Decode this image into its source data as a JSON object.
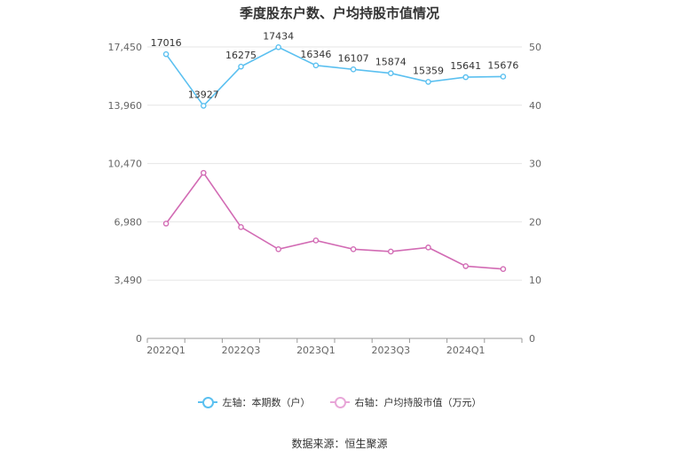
{
  "chart_data": {
    "type": "line",
    "title": "季度股东户数、户均持股市值情况",
    "source": "数据来源：恒生聚源",
    "x": [
      "2022Q1",
      "2022Q2",
      "2022Q3",
      "2022Q4",
      "2023Q1",
      "2023Q2",
      "2023Q3",
      "2023Q4",
      "2024Q1",
      "2024Q2"
    ],
    "x_tick_labels": [
      "2022Q1",
      "",
      "2022Q3",
      "",
      "2023Q1",
      "",
      "2023Q3",
      "",
      "2024Q1",
      ""
    ],
    "left_axis": {
      "ylim": [
        0,
        17450
      ],
      "ticks": [
        "0",
        "3,490",
        "6,980",
        "10,470",
        "13,960",
        "17,450"
      ]
    },
    "right_axis": {
      "ylim": [
        0,
        50
      ],
      "ticks": [
        "0",
        "10",
        "20",
        "30",
        "40",
        "50"
      ]
    },
    "grid": true,
    "legend_position": "bottom",
    "series": [
      {
        "name": "左轴：本期数（户）",
        "axis": "left",
        "color": "#5bc0f0",
        "values": [
          17016,
          13927,
          16275,
          17434,
          16346,
          16107,
          15874,
          15359,
          15641,
          15676
        ],
        "labels": [
          "17016",
          "13927",
          "16275",
          "17434",
          "16346",
          "16107",
          "15874",
          "15359",
          "15641",
          "15676"
        ]
      },
      {
        "name": "右轴：户均持股市值（万元）",
        "axis": "right",
        "color": "#d26bb4",
        "values": [
          19.7,
          28.4,
          19.1,
          15.3,
          16.8,
          15.3,
          14.9,
          15.6,
          12.4,
          11.9
        ]
      }
    ]
  }
}
